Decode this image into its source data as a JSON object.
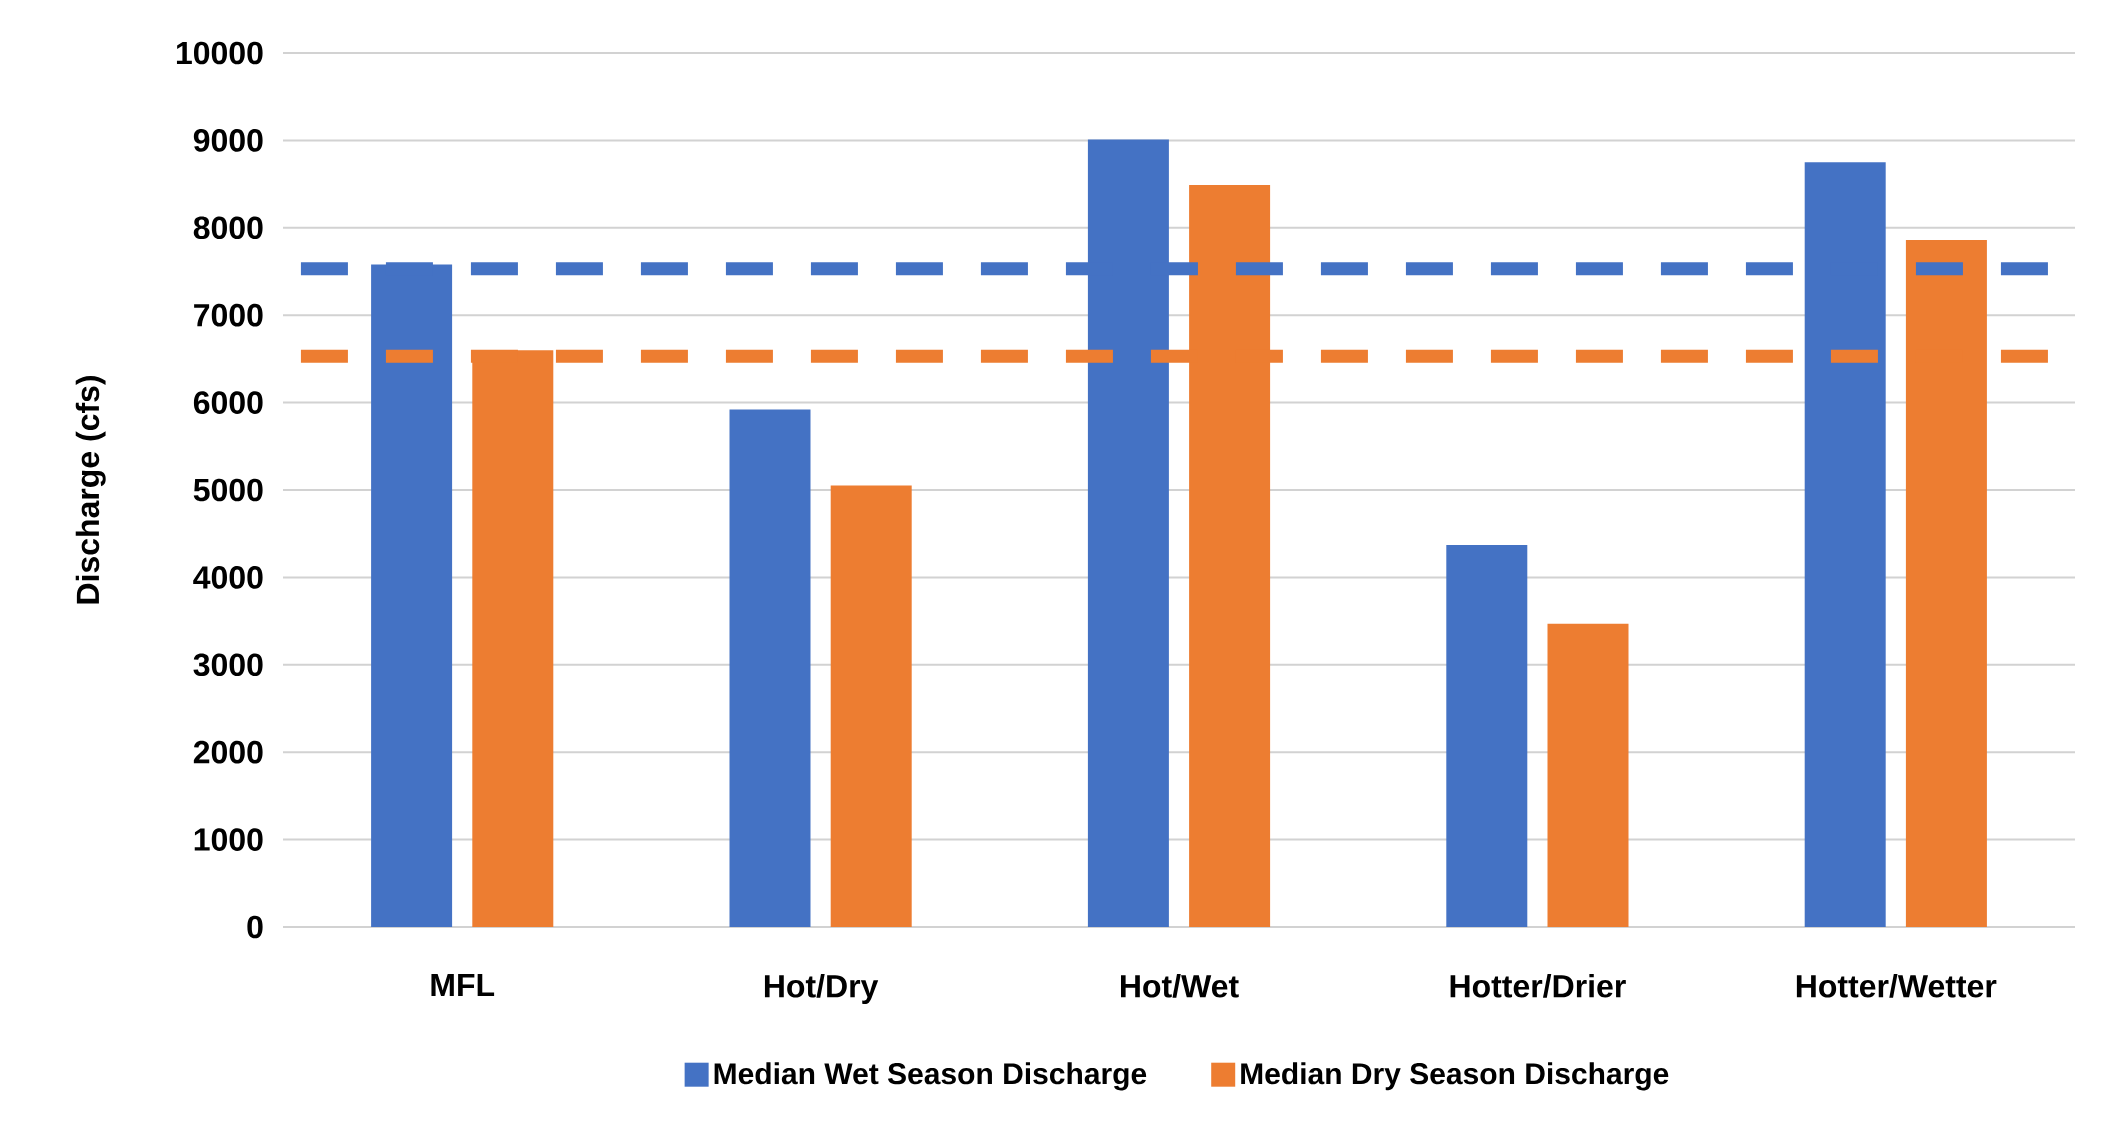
{
  "chart_data": {
    "type": "bar",
    "ylabel": "Discharge (cfs)",
    "categories": [
      "MFL",
      "Hot/Dry",
      "Hot/Wet",
      "Hotter/Drier",
      "Hotter/Wetter"
    ],
    "series": [
      {
        "name": "Median Wet Season Discharge",
        "color": "#4472c4",
        "values": [
          7580,
          5920,
          9010,
          4370,
          8750
        ]
      },
      {
        "name": "Median Dry Season Discharge",
        "color": "#ed7d31",
        "values": [
          6600,
          5050,
          8490,
          3470,
          7860
        ]
      }
    ],
    "ref_lines": [
      {
        "axis": "y",
        "value": 7530,
        "color": "#4472c4",
        "line_style": "dashed"
      },
      {
        "axis": "y",
        "value": 6530,
        "color": "#ed7d31",
        "line_style": "dashed"
      }
    ],
    "ylim": [
      0,
      10000
    ],
    "yticks": [
      0,
      1000,
      2000,
      3000,
      4000,
      5000,
      6000,
      7000,
      8000,
      9000,
      10000
    ],
    "grid": "y",
    "legend": "bottom"
  }
}
